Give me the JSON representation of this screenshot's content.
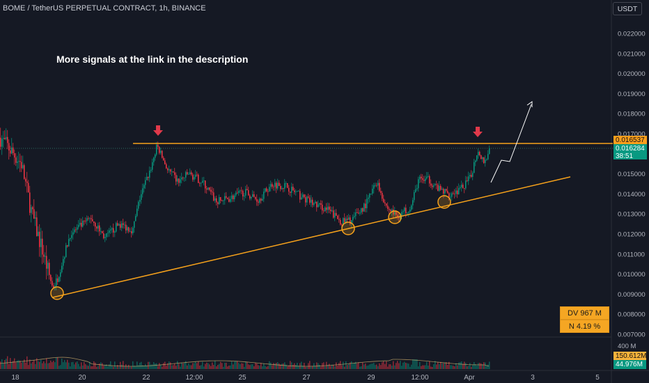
{
  "header": {
    "title": "BOME / TetherUS PERPETUAL CONTRACT, 1h, BINANCE",
    "currency": "USDT"
  },
  "note": "More signals at the link in the description",
  "price_axis": [
    "0.022000",
    "0.021000",
    "0.020000",
    "0.019000",
    "0.018000",
    "0.017000",
    "0.015000",
    "0.014000",
    "0.013000",
    "0.012000",
    "0.011000",
    "0.010000",
    "0.009000",
    "0.008000",
    "0.007000"
  ],
  "time_axis": [
    "18",
    "20",
    "22",
    "12:00",
    "25",
    "27",
    "29",
    "12:00",
    "Apr",
    "3",
    "5"
  ],
  "badges": {
    "resistance_price": "0.016537",
    "last_price": "0.016284",
    "countdown": "38:51",
    "volume_max": "400 M",
    "volume_ma": "150.612M",
    "volume_last": "44.976M"
  },
  "stats": {
    "dv": "DV 967 M",
    "n": "N 4.19 %"
  },
  "colors": {
    "background": "#151924",
    "up_candle": "#089981",
    "down_candle": "#f23645",
    "trendline": "#f7a21b",
    "arrow": "#e0394a",
    "projection": "#ffffff"
  }
}
